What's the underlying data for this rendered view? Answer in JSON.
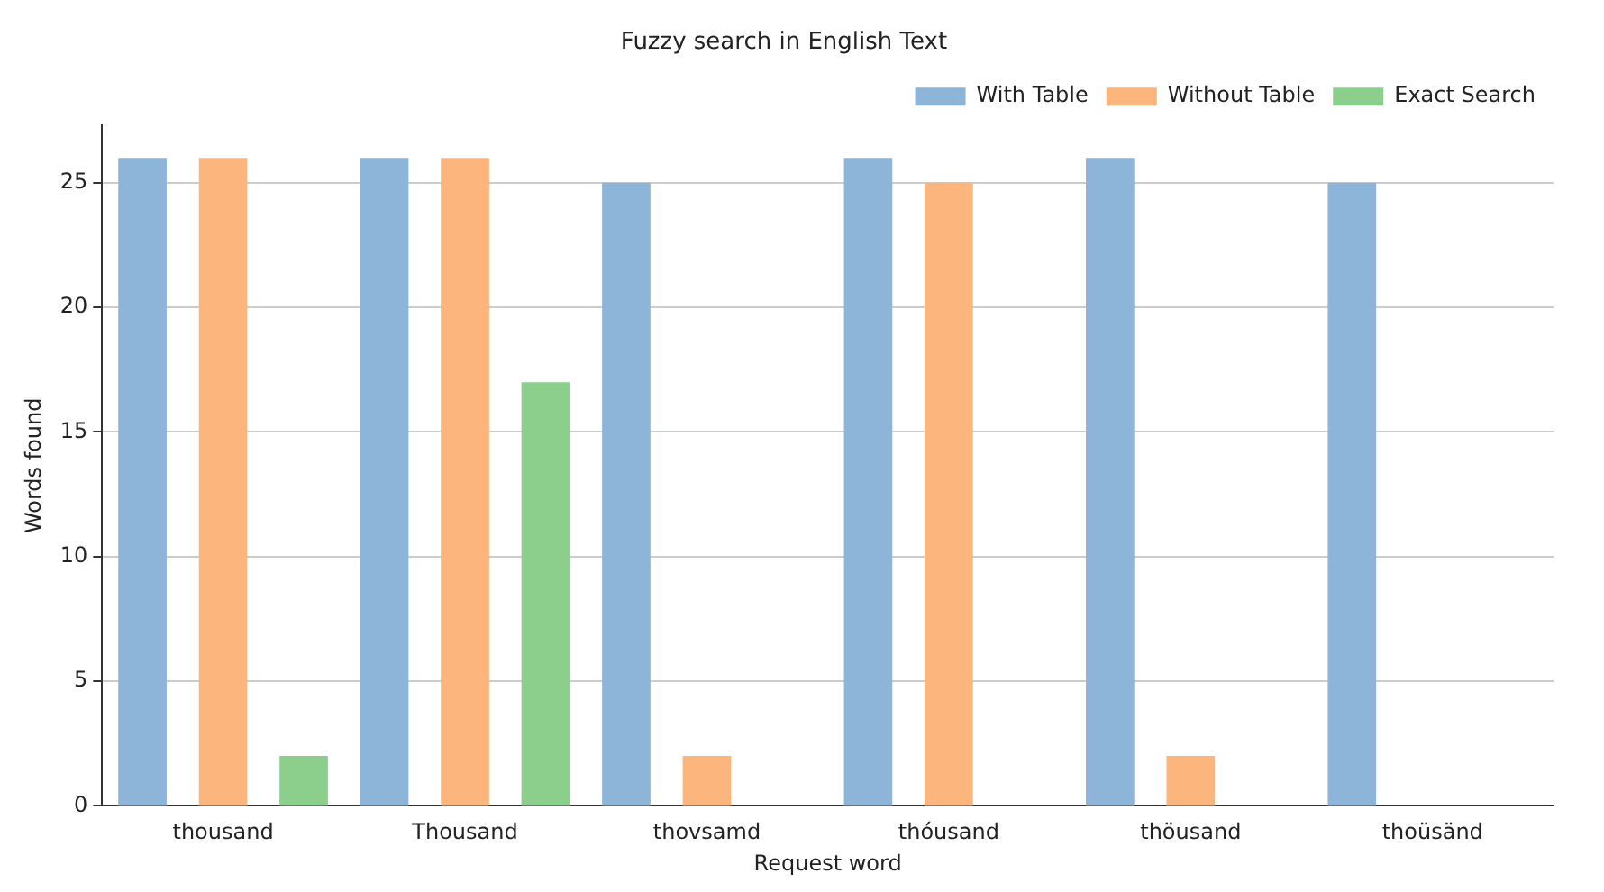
{
  "chart_data": {
    "type": "bar",
    "title": "Fuzzy search in English Text",
    "xlabel": "Request word",
    "ylabel": "Words found",
    "categories": [
      "thousand",
      "Thousand",
      "thovsamd",
      "thóusand",
      "thöusand",
      "thoüsänd"
    ],
    "series": [
      {
        "name": "With Table",
        "color": "#8cb5d9",
        "values": [
          26,
          26,
          25,
          26,
          26,
          25
        ]
      },
      {
        "name": "Without Table",
        "color": "#fdb57e",
        "values": [
          26,
          26,
          2,
          25,
          2,
          0
        ]
      },
      {
        "name": "Exact Search",
        "color": "#8ccf8c",
        "values": [
          2,
          17,
          0,
          0,
          0,
          0
        ]
      }
    ],
    "ylim": [
      0,
      27.3
    ],
    "yticks": [
      0,
      5,
      10,
      15,
      20,
      25
    ],
    "grid": "y",
    "legend": "top right"
  }
}
